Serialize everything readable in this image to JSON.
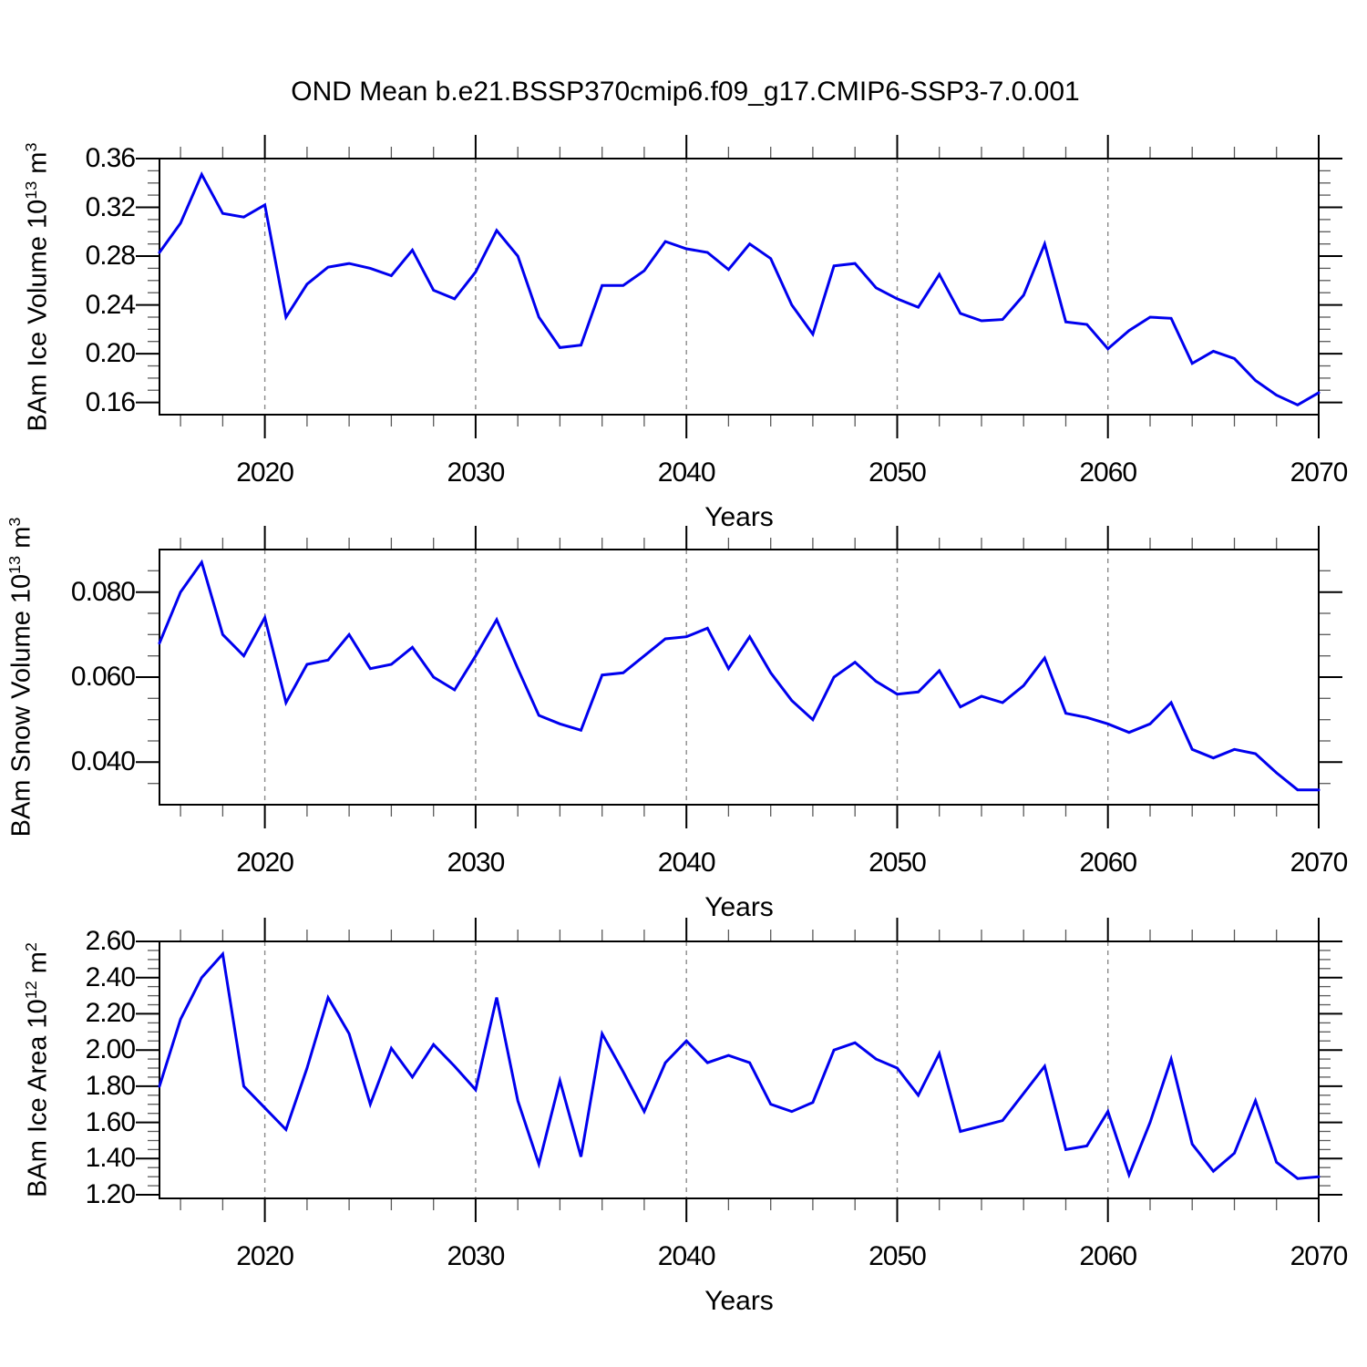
{
  "title": "OND Mean b.e21.BSSP370cmip6.f09_g17.CMIP6-SSP3-7.0.001",
  "colors": {
    "line": "#0000EE",
    "grid": "#8a8a8a",
    "axis": "#000000",
    "minor_tick": "#5a5a5a",
    "background": "#FFFFFF"
  },
  "chart_data": [
    {
      "type": "line",
      "title": "",
      "xlabel": "Years",
      "ylabel": "BAm Ice Volume 10^13 m^3",
      "x": {
        "start": 2015,
        "end": 2070,
        "step": 1
      },
      "xlim": [
        2015,
        2070
      ],
      "xticks": [
        2020,
        2030,
        2040,
        2050,
        2060,
        2070
      ],
      "xtick_labels": [
        "2020",
        "2030",
        "2040",
        "2050",
        "2060",
        "2070"
      ],
      "x_minor_step": 2,
      "gridlines_x": [
        2020,
        2030,
        2040,
        2050,
        2060
      ],
      "ylim": [
        0.15,
        0.36
      ],
      "ytick_values": [
        0.16,
        0.2,
        0.24,
        0.28,
        0.32,
        0.36
      ],
      "ytick_labels": [
        "0.16",
        "0.20",
        "0.24",
        "0.28",
        "0.32",
        "0.36"
      ],
      "y_minor_step": 0.01,
      "legend": "none",
      "grid": "vertical-dashed",
      "values": [
        0.283,
        0.307,
        0.347,
        0.315,
        0.312,
        0.322,
        0.23,
        0.257,
        0.271,
        0.274,
        0.27,
        0.264,
        0.285,
        0.252,
        0.245,
        0.267,
        0.301,
        0.28,
        0.23,
        0.205,
        0.207,
        0.256,
        0.256,
        0.268,
        0.292,
        0.286,
        0.283,
        0.269,
        0.29,
        0.278,
        0.24,
        0.216,
        0.272,
        0.274,
        0.254,
        0.245,
        0.238,
        0.265,
        0.233,
        0.227,
        0.228,
        0.248,
        0.29,
        0.226,
        0.224,
        0.204,
        0.219,
        0.23,
        0.229,
        0.192,
        0.202,
        0.196,
        0.178,
        0.166,
        0.158,
        0.168
      ]
    },
    {
      "type": "line",
      "title": "",
      "xlabel": "Years",
      "ylabel": "BAm Snow Volume 10^13 m^3",
      "x": {
        "start": 2015,
        "end": 2070,
        "step": 1
      },
      "xlim": [
        2015,
        2070
      ],
      "xticks": [
        2020,
        2030,
        2040,
        2050,
        2060,
        2070
      ],
      "xtick_labels": [
        "2020",
        "2030",
        "2040",
        "2050",
        "2060",
        "2070"
      ],
      "x_minor_step": 2,
      "gridlines_x": [
        2020,
        2030,
        2040,
        2050,
        2060
      ],
      "ylim": [
        0.03,
        0.09
      ],
      "ytick_values": [
        0.04,
        0.06,
        0.08
      ],
      "ytick_labels": [
        "0.040",
        "0.060",
        "0.080"
      ],
      "y_minor_step": 0.005,
      "legend": "none",
      "grid": "vertical-dashed",
      "values": [
        0.068,
        0.08,
        0.087,
        0.07,
        0.065,
        0.074,
        0.054,
        0.063,
        0.064,
        0.07,
        0.062,
        0.063,
        0.067,
        0.06,
        0.057,
        0.065,
        0.0735,
        0.062,
        0.051,
        0.049,
        0.0475,
        0.0605,
        0.061,
        0.065,
        0.069,
        0.0695,
        0.0715,
        0.062,
        0.0695,
        0.061,
        0.0545,
        0.05,
        0.06,
        0.0635,
        0.059,
        0.056,
        0.0565,
        0.0615,
        0.053,
        0.0555,
        0.054,
        0.058,
        0.0645,
        0.0515,
        0.0505,
        0.049,
        0.047,
        0.049,
        0.054,
        0.043,
        0.041,
        0.043,
        0.042,
        0.0375,
        0.0335,
        0.0335
      ]
    },
    {
      "type": "line",
      "title": "",
      "xlabel": "Years",
      "ylabel": "BAm Ice Area 10^12 m^2",
      "x": {
        "start": 2015,
        "end": 2070,
        "step": 1
      },
      "xlim": [
        2015,
        2070
      ],
      "xticks": [
        2020,
        2030,
        2040,
        2050,
        2060,
        2070
      ],
      "xtick_labels": [
        "2020",
        "2030",
        "2040",
        "2050",
        "2060",
        "2070"
      ],
      "x_minor_step": 2,
      "gridlines_x": [
        2020,
        2030,
        2040,
        2050,
        2060
      ],
      "ylim": [
        1.18,
        2.6
      ],
      "ytick_values": [
        1.2,
        1.4,
        1.6,
        1.8,
        2.0,
        2.2,
        2.4,
        2.6
      ],
      "ytick_labels": [
        "1.20",
        "1.40",
        "1.60",
        "1.80",
        "2.00",
        "2.20",
        "2.40",
        "2.60"
      ],
      "y_minor_step": 0.05,
      "legend": "none",
      "grid": "vertical-dashed",
      "values": [
        1.8,
        2.17,
        2.4,
        2.53,
        1.8,
        1.68,
        1.56,
        1.9,
        2.29,
        2.09,
        1.7,
        2.01,
        1.85,
        2.03,
        1.91,
        1.78,
        2.29,
        1.72,
        1.37,
        1.83,
        1.41,
        2.09,
        1.88,
        1.66,
        1.93,
        2.05,
        1.93,
        1.97,
        1.93,
        1.7,
        1.66,
        1.71,
        2.0,
        2.04,
        1.95,
        1.9,
        1.75,
        1.98,
        1.55,
        1.58,
        1.61,
        1.76,
        1.91,
        1.45,
        1.47,
        1.66,
        1.31,
        1.6,
        1.95,
        1.48,
        1.33,
        1.43,
        1.72,
        1.38,
        1.29,
        1.3
      ]
    }
  ]
}
